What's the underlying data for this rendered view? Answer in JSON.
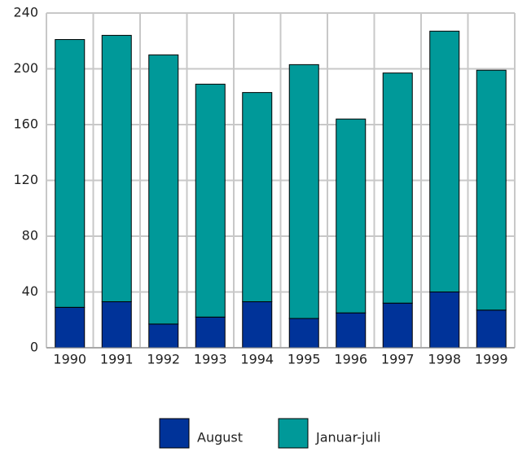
{
  "chart_data": {
    "type": "stacked_bar",
    "categories": [
      "1990",
      "1991",
      "1992",
      "1993",
      "1994",
      "1995",
      "1996",
      "1997",
      "1998",
      "1999"
    ],
    "series": [
      {
        "name": "August",
        "color": "#003399",
        "values": [
          29,
          33,
          17,
          22,
          33,
          21,
          25,
          32,
          40,
          27
        ]
      },
      {
        "name": "Januar-juli",
        "color": "#009999",
        "values": [
          192,
          191,
          193,
          167,
          150,
          182,
          139,
          165,
          187,
          172
        ]
      }
    ],
    "ylim": [
      0,
      240
    ],
    "yticks": [
      0,
      40,
      80,
      120,
      160,
      200,
      240
    ],
    "grid": true,
    "legend": "bottom"
  }
}
